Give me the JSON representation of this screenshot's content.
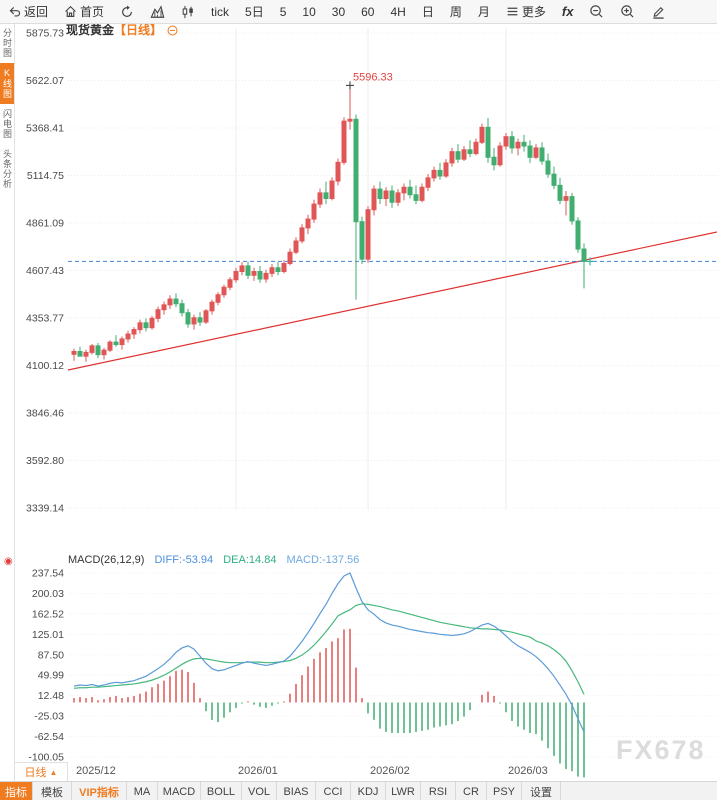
{
  "toolbar": {
    "items": [
      {
        "label": "返回"
      },
      {
        "label": "首页"
      },
      {
        "label": ""
      },
      {
        "label": ""
      },
      {
        "label": ""
      },
      {
        "label": "tick"
      },
      {
        "label": "5日"
      },
      {
        "label": "5"
      },
      {
        "label": "10"
      },
      {
        "label": "30"
      },
      {
        "label": "60"
      },
      {
        "label": "4H"
      },
      {
        "label": "日"
      },
      {
        "label": "周"
      },
      {
        "label": "月"
      },
      {
        "label": "更多"
      },
      {
        "label": "fx"
      },
      {
        "label": ""
      },
      {
        "label": ""
      },
      {
        "label": ""
      }
    ]
  },
  "sidebar": {
    "items": [
      {
        "label": "分时图",
        "active": false
      },
      {
        "label": "K线图",
        "active": true
      },
      {
        "label": "闪电图",
        "active": false
      },
      {
        "label": "头条分析",
        "active": false
      }
    ]
  },
  "chart_header": {
    "instrument": "现货黄金",
    "period_tag": "【日线】"
  },
  "watermark": "FX678",
  "date_row": {
    "period": "日线",
    "arrow": "▲"
  },
  "indicator_bar": {
    "tabs": [
      {
        "label": "指标",
        "style": "hot"
      },
      {
        "label": "模板",
        "style": ""
      },
      {
        "label": "VIP指标",
        "style": "vip"
      },
      {
        "label": "MA",
        "style": ""
      },
      {
        "label": "MACD",
        "style": ""
      },
      {
        "label": "BOLL",
        "style": ""
      },
      {
        "label": "VOL",
        "style": ""
      },
      {
        "label": "BIAS",
        "style": ""
      },
      {
        "label": "CCI",
        "style": ""
      },
      {
        "label": "KDJ",
        "style": ""
      },
      {
        "label": "LWR",
        "style": ""
      },
      {
        "label": "RSI",
        "style": ""
      },
      {
        "label": "CR",
        "style": ""
      },
      {
        "label": "PSY",
        "style": ""
      },
      {
        "label": "设置",
        "style": ""
      }
    ]
  },
  "chart_data": {
    "type": "candlestick",
    "title": "现货黄金【日线】",
    "up_color": "#e05555",
    "down_color": "#3fae6f",
    "grid": true,
    "y_ticks": [
      "5875.73",
      "5622.07",
      "5368.41",
      "5114.75",
      "4861.09",
      "4607.43",
      "4353.77",
      "4100.12",
      "3846.46",
      "3592.80",
      "3339.14"
    ],
    "x_labels": [
      {
        "label": "2025/12",
        "index": 0
      },
      {
        "label": "2026/01",
        "index": 27
      },
      {
        "label": "2026/02",
        "index": 49
      },
      {
        "label": "2026/03",
        "index": 72
      }
    ],
    "peak_annotation": {
      "text": "5596.33",
      "index": 46,
      "price": 5596.33,
      "color": "#e04343"
    },
    "last_price_line": {
      "price": 4656,
      "color": "#4285d6"
    },
    "last_price_marker": {
      "index": 86,
      "price": 4656,
      "color": "#3cb8a0"
    },
    "trendline": {
      "price_start": 4076,
      "price_end": 4813,
      "color": "#e03131"
    },
    "candles": [
      [
        4160,
        4190,
        4125,
        4175
      ],
      [
        4175,
        4200,
        4155,
        4150
      ],
      [
        4150,
        4185,
        4120,
        4170
      ],
      [
        4170,
        4215,
        4158,
        4205
      ],
      [
        4205,
        4220,
        4140,
        4158
      ],
      [
        4158,
        4195,
        4132,
        4182
      ],
      [
        4182,
        4235,
        4172,
        4225
      ],
      [
        4225,
        4262,
        4200,
        4212
      ],
      [
        4212,
        4255,
        4185,
        4242
      ],
      [
        4242,
        4285,
        4222,
        4268
      ],
      [
        4268,
        4305,
        4242,
        4292
      ],
      [
        4292,
        4345,
        4272,
        4328
      ],
      [
        4328,
        4352,
        4282,
        4302
      ],
      [
        4302,
        4365,
        4292,
        4352
      ],
      [
        4352,
        4415,
        4332,
        4398
      ],
      [
        4398,
        4442,
        4372,
        4424
      ],
      [
        4424,
        4475,
        4402,
        4455
      ],
      [
        4455,
        4485,
        4412,
        4430
      ],
      [
        4430,
        4452,
        4362,
        4382
      ],
      [
        4382,
        4402,
        4302,
        4322
      ],
      [
        4322,
        4372,
        4292,
        4355
      ],
      [
        4355,
        4385,
        4312,
        4332
      ],
      [
        4332,
        4402,
        4322,
        4392
      ],
      [
        4392,
        4452,
        4372,
        4438
      ],
      [
        4438,
        4492,
        4422,
        4478
      ],
      [
        4478,
        4532,
        4462,
        4518
      ],
      [
        4518,
        4572,
        4502,
        4558
      ],
      [
        4558,
        4622,
        4542,
        4602
      ],
      [
        4602,
        4652,
        4582,
        4632
      ],
      [
        4632,
        4655,
        4562,
        4582
      ],
      [
        4582,
        4622,
        4552,
        4602
      ],
      [
        4602,
        4632,
        4542,
        4562
      ],
      [
        4562,
        4612,
        4542,
        4592
      ],
      [
        4592,
        4642,
        4572,
        4622
      ],
      [
        4622,
        4652,
        4582,
        4602
      ],
      [
        4602,
        4662,
        4592,
        4645
      ],
      [
        4645,
        4725,
        4635,
        4705
      ],
      [
        4705,
        4785,
        4695,
        4765
      ],
      [
        4765,
        4855,
        4752,
        4835
      ],
      [
        4835,
        4905,
        4802,
        4882
      ],
      [
        4882,
        4985,
        4862,
        4962
      ],
      [
        4962,
        5045,
        4942,
        5022
      ],
      [
        5022,
        5082,
        4962,
        4992
      ],
      [
        4992,
        5105,
        4982,
        5085
      ],
      [
        5085,
        5205,
        5062,
        5185
      ],
      [
        5185,
        5425,
        5172,
        5405
      ],
      [
        5405,
        5596.33,
        5360,
        5415
      ],
      [
        5415,
        5440,
        4452,
        4868
      ],
      [
        4868,
        4895,
        4642,
        4668
      ],
      [
        4668,
        4952,
        4648,
        4932
      ],
      [
        4932,
        5062,
        4902,
        5042
      ],
      [
        5042,
        5082,
        4962,
        4992
      ],
      [
        4992,
        5052,
        4952,
        5032
      ],
      [
        5032,
        5062,
        4942,
        4972
      ],
      [
        4972,
        5042,
        4952,
        5022
      ],
      [
        5022,
        5072,
        4982,
        5052
      ],
      [
        5052,
        5092,
        4992,
        5012
      ],
      [
        5012,
        5062,
        4962,
        4982
      ],
      [
        4982,
        5072,
        4972,
        5052
      ],
      [
        5052,
        5122,
        5032,
        5102
      ],
      [
        5102,
        5162,
        5082,
        5142
      ],
      [
        5142,
        5182,
        5092,
        5112
      ],
      [
        5112,
        5202,
        5102,
        5182
      ],
      [
        5182,
        5262,
        5162,
        5242
      ],
      [
        5242,
        5282,
        5182,
        5202
      ],
      [
        5202,
        5272,
        5192,
        5252
      ],
      [
        5252,
        5302,
        5212,
        5232
      ],
      [
        5232,
        5312,
        5222,
        5292
      ],
      [
        5292,
        5392,
        5282,
        5372
      ],
      [
        5372,
        5422,
        5182,
        5212
      ],
      [
        5212,
        5262,
        5142,
        5172
      ],
      [
        5172,
        5292,
        5162,
        5272
      ],
      [
        5272,
        5342,
        5252,
        5322
      ],
      [
        5322,
        5352,
        5232,
        5262
      ],
      [
        5262,
        5312,
        5222,
        5292
      ],
      [
        5292,
        5332,
        5242,
        5272
      ],
      [
        5272,
        5302,
        5182,
        5212
      ],
      [
        5212,
        5282,
        5202,
        5262
      ],
      [
        5262,
        5292,
        5172,
        5192
      ],
      [
        5192,
        5232,
        5102,
        5122
      ],
      [
        5122,
        5162,
        5042,
        5062
      ],
      [
        5062,
        5102,
        4962,
        4982
      ],
      [
        4982,
        5032,
        4902,
        5002
      ],
      [
        5002,
        5022,
        4852,
        4872
      ],
      [
        4872,
        4892,
        4702,
        4722
      ],
      [
        4722,
        4752,
        4512,
        4656
      ]
    ],
    "macd": {
      "label": "MACD(26,12,9)",
      "diff_label": "DIFF:-53.94",
      "dea_label": "DEA:14.84",
      "macd_label": "MACD:-137.56",
      "diff_color": "#5b9bd8",
      "dea_color": "#45b97c",
      "pos_color": "#e05555",
      "neg_color": "#3fae6f",
      "y_ticks": [
        "237.54",
        "200.03",
        "162.52",
        "125.01",
        "87.50",
        "49.99",
        "12.48",
        "-25.03",
        "-62.54",
        "-100.05"
      ],
      "diff": [
        30,
        32,
        31,
        33,
        30,
        32,
        35,
        37,
        36,
        38,
        40,
        44,
        48,
        55,
        62,
        70,
        80,
        92,
        100,
        104,
        98,
        85,
        72,
        62,
        58,
        60,
        64,
        68,
        72,
        75,
        72,
        70,
        68,
        70,
        73,
        76,
        85,
        98,
        112,
        128,
        145,
        163,
        180,
        200,
        218,
        232,
        237.54,
        210,
        185,
        170,
        162,
        152,
        146,
        142,
        140,
        137,
        134,
        132,
        130,
        128,
        127,
        125,
        124,
        123,
        124,
        126,
        130,
        136,
        142,
        145,
        140,
        132,
        122,
        112,
        104,
        98,
        92,
        84,
        74,
        62,
        48,
        32,
        15,
        -5,
        -30,
        -53.94
      ],
      "dea": [
        26,
        27,
        27,
        28,
        28,
        29,
        30,
        31,
        32,
        33,
        34,
        36,
        38,
        41,
        45,
        50,
        56,
        63,
        70,
        76,
        80,
        81,
        80,
        78,
        76,
        74,
        73,
        73,
        73,
        74,
        74,
        74,
        73,
        73,
        74,
        75,
        77,
        81,
        87,
        95,
        105,
        117,
        130,
        144,
        159,
        165,
        170,
        178,
        181,
        180,
        178,
        176,
        173,
        170,
        168,
        165,
        162,
        159,
        156,
        153,
        150,
        147,
        145,
        143,
        141,
        139,
        137,
        136,
        135,
        135,
        134,
        133,
        131,
        129,
        126,
        123,
        120,
        113,
        109,
        104,
        97,
        88,
        76,
        58,
        38,
        14.84
      ]
    }
  }
}
